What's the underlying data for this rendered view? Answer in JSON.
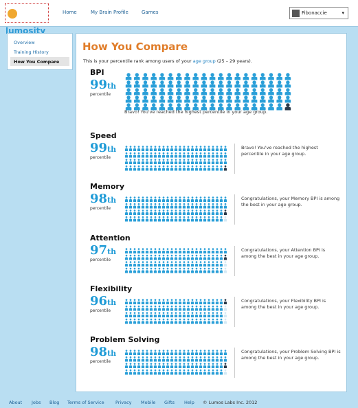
{
  "header": {
    "logo": "lumosity",
    "nav": [
      "Home",
      "My Brain Profile",
      "Games"
    ],
    "user": "Fibonaccie"
  },
  "sidebar": [
    "Overview",
    "Training History",
    "How You Compare"
  ],
  "page": {
    "title": "How You Compare",
    "intro_before": "This is your percentile rank among users of your ",
    "intro_link": "age group",
    "intro_after": " (25 – 29 years)."
  },
  "sections": [
    {
      "name": "BPI",
      "percentile": 99,
      "suffix": "th",
      "unit": "percentile",
      "message": "Bravo! You've reached the highest percentile in your age group."
    },
    {
      "name": "Speed",
      "percentile": 99,
      "suffix": "th",
      "unit": "percentile",
      "message": "Bravo! You've reached the highest percentile in your age group."
    },
    {
      "name": "Memory",
      "percentile": 98,
      "suffix": "th",
      "unit": "percentile",
      "message": "Congratulations, your Memory BPI is among the best in your age group."
    },
    {
      "name": "Attention",
      "percentile": 97,
      "suffix": "th",
      "unit": "percentile",
      "message": "Congratulations, your Attention BPI is among the best in your age group."
    },
    {
      "name": "Flexibility",
      "percentile": 96,
      "suffix": "th",
      "unit": "percentile",
      "message": "Congratulations, your Flexibility BPI is among the best in your age group."
    },
    {
      "name": "Problem Solving",
      "percentile": 98,
      "suffix": "th",
      "unit": "percentile",
      "message": "Congratulations, your Problem Solving BPI is among the best in your age group."
    }
  ],
  "footer": {
    "links": [
      "About",
      "Jobs",
      "Blog",
      "Terms of Service",
      "Privacy",
      "Mobile",
      "Gifts",
      "Help"
    ],
    "copyright": "© Lumos Labs Inc. 2012"
  }
}
